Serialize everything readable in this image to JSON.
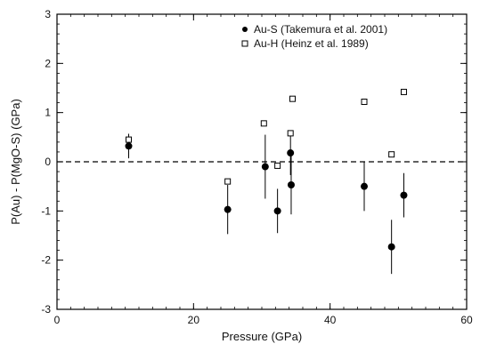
{
  "chart_data": {
    "type": "scatter",
    "xlabel": "Pressure (GPa)",
    "ylabel": "P(Au) - P(MgO-S) (GPa)",
    "xlim": [
      0,
      60
    ],
    "ylim": [
      -3,
      3
    ],
    "xticks": [
      0,
      20,
      40,
      60
    ],
    "yticks": [
      -3,
      -2,
      -1,
      0,
      1,
      2,
      3
    ],
    "x_minor_step": 2,
    "y_minor_step": 0.2,
    "reference_line": {
      "y": 0,
      "style": "dashed"
    },
    "legend_position": "top-right",
    "series": [
      {
        "name": "Au-S (Takemura et al. 2001)",
        "marker": "filled-circle",
        "color": "#000000",
        "points": [
          {
            "x": 10.5,
            "y": 0.32,
            "err": 0.25
          },
          {
            "x": 25.0,
            "y": -0.97,
            "err": 0.5
          },
          {
            "x": 30.5,
            "y": -0.1,
            "err": 0.65
          },
          {
            "x": 32.3,
            "y": -1.0,
            "err": 0.45
          },
          {
            "x": 34.2,
            "y": 0.18,
            "err": 0.45
          },
          {
            "x": 34.3,
            "y": -0.47,
            "err": 0.6
          },
          {
            "x": 45.0,
            "y": -0.5,
            "err": 0.5
          },
          {
            "x": 49.0,
            "y": -1.73,
            "err": 0.55
          },
          {
            "x": 50.8,
            "y": -0.68,
            "err": 0.45
          }
        ]
      },
      {
        "name": "Au-H (Heinz et al. 1989)",
        "marker": "open-square",
        "color": "#000000",
        "points": [
          {
            "x": 10.5,
            "y": 0.45
          },
          {
            "x": 25.0,
            "y": -0.4
          },
          {
            "x": 30.3,
            "y": 0.78
          },
          {
            "x": 32.3,
            "y": -0.08
          },
          {
            "x": 34.2,
            "y": 0.58
          },
          {
            "x": 34.5,
            "y": 1.28
          },
          {
            "x": 45.0,
            "y": 1.22
          },
          {
            "x": 49.0,
            "y": 0.15
          },
          {
            "x": 50.8,
            "y": 1.42
          }
        ]
      }
    ]
  }
}
